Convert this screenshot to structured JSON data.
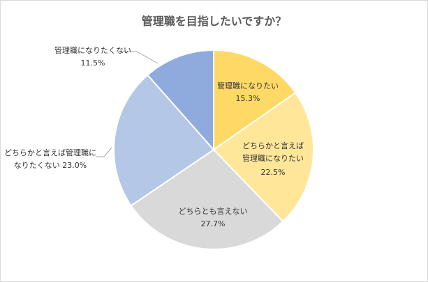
{
  "chart_data": {
    "type": "pie",
    "title": "管理職を目指したいですか？",
    "start_angle_deg": 0,
    "direction": "clockwise",
    "slices": [
      {
        "label": "管理職になりたい",
        "percent_text": "15.3%",
        "value": 15.3,
        "color": "#FFD966"
      },
      {
        "label": "どちらかと言えば管理職になりたい",
        "percent_text": "22.5%",
        "value": 22.5,
        "color": "#FFE699"
      },
      {
        "label": "どちらとも言えない",
        "percent_text": "27.7%",
        "value": 27.7,
        "color": "#D9D9D9"
      },
      {
        "label": "どちらかと言えば管理職になりたくない",
        "percent_text": "23.0%",
        "value": 23.0,
        "color": "#B4C7E7"
      },
      {
        "label": "管理職になりたくない",
        "percent_text": "11.5%",
        "value": 11.5,
        "color": "#8FAADC"
      }
    ],
    "legend": "none"
  }
}
